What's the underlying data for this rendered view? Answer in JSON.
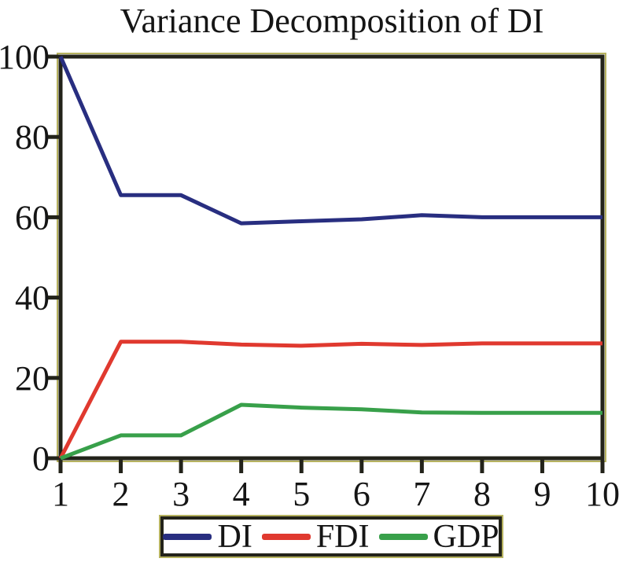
{
  "title": "Variance Decomposition of DI",
  "chart_data": {
    "type": "line",
    "title": "Variance Decomposition of DI",
    "x": [
      1,
      2,
      3,
      4,
      5,
      6,
      7,
      8,
      9,
      10
    ],
    "series": [
      {
        "name": "DI",
        "color": "#282e80",
        "values": [
          100,
          65.5,
          65.5,
          58.5,
          59,
          59.5,
          60.5,
          60,
          60,
          60
        ]
      },
      {
        "name": "FDI",
        "color": "#e0392f",
        "values": [
          0,
          29,
          29,
          28.3,
          28,
          28.5,
          28.2,
          28.6,
          28.6,
          28.6
        ]
      },
      {
        "name": "GDP",
        "color": "#38a04a",
        "values": [
          0,
          5.7,
          5.7,
          13.3,
          12.6,
          12.2,
          11.4,
          11.3,
          11.3,
          11.3
        ]
      }
    ],
    "xlabel": "",
    "ylabel": "",
    "xlim": [
      1,
      10
    ],
    "ylim": [
      0,
      100
    ],
    "x_ticks": [
      1,
      2,
      3,
      4,
      5,
      6,
      7,
      8,
      9,
      10
    ],
    "y_ticks": [
      0,
      20,
      40,
      60,
      80,
      100
    ],
    "grid": false,
    "legend_position": "bottom",
    "frame_color": "#23231a",
    "frame_halo_color": "#b6b25f",
    "tick_color": "#23231a",
    "label_color": "#151515",
    "background": "#ffffff",
    "line_width": 5
  },
  "legend": {
    "items": [
      {
        "label": "DI",
        "color": "#282e80"
      },
      {
        "label": "FDI",
        "color": "#e0392f"
      },
      {
        "label": "GDP",
        "color": "#38a04a"
      }
    ]
  }
}
